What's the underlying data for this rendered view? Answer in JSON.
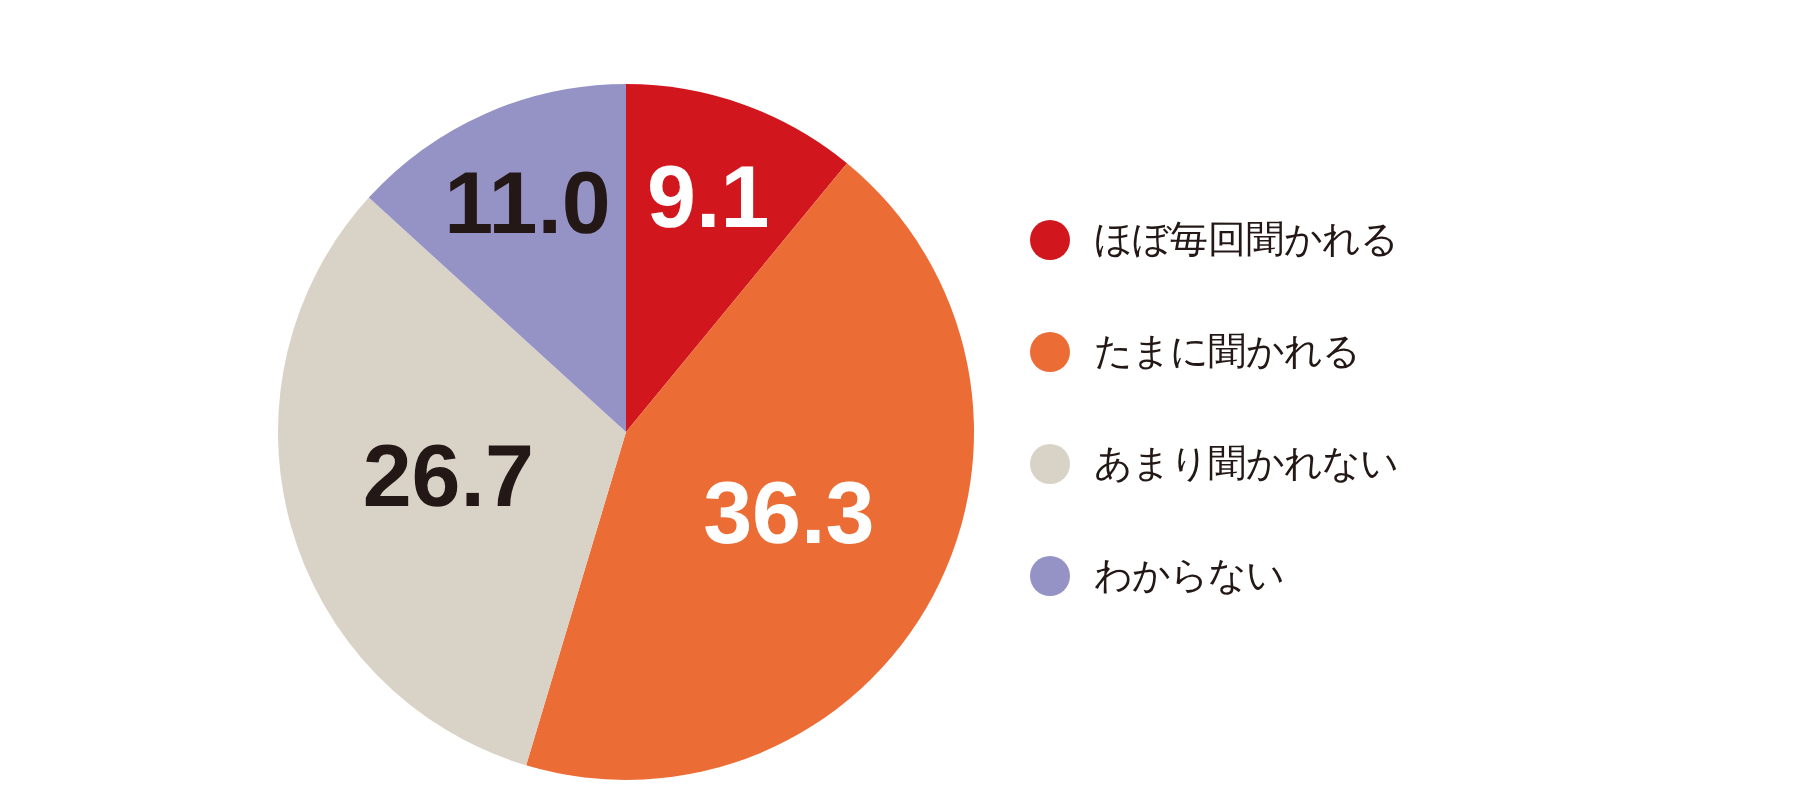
{
  "chart_data": {
    "type": "pie",
    "categories": [
      "ほぼ毎回聞かれる",
      "たまに聞かれる",
      "あまり聞かれない",
      "わからない"
    ],
    "values": [
      9.1,
      36.3,
      26.7,
      11.0
    ],
    "value_labels": [
      "9.1",
      "36.3",
      "26.7",
      "11.0"
    ],
    "colors": [
      "#d2161e",
      "#ec6c35",
      "#d9d3c7",
      "#9593c6"
    ],
    "legend": "right"
  }
}
